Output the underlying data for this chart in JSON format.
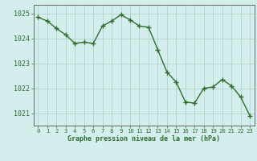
{
  "x": [
    0,
    1,
    2,
    3,
    4,
    5,
    6,
    7,
    8,
    9,
    10,
    11,
    12,
    13,
    14,
    15,
    16,
    17,
    18,
    19,
    20,
    21,
    22,
    23
  ],
  "y": [
    1024.85,
    1024.7,
    1024.4,
    1024.15,
    1023.8,
    1023.85,
    1023.8,
    1024.5,
    1024.7,
    1024.95,
    1024.75,
    1024.5,
    1024.45,
    1023.55,
    1022.65,
    1022.25,
    1021.45,
    1021.4,
    1022.0,
    1022.05,
    1022.35,
    1022.1,
    1021.65,
    1020.9
  ],
  "line_color": "#2d6e2d",
  "marker_color": "#2d6e2d",
  "bg_color": "#d4eeed",
  "grid_color": "#b0d4cc",
  "text_color": "#2d6e2d",
  "xlabel": "Graphe pression niveau de la mer (hPa)",
  "ylim_min": 1020.5,
  "ylim_max": 1025.35,
  "yticks": [
    1021,
    1022,
    1023,
    1024,
    1025
  ],
  "xticks": [
    0,
    1,
    2,
    3,
    4,
    5,
    6,
    7,
    8,
    9,
    10,
    11,
    12,
    13,
    14,
    15,
    16,
    17,
    18,
    19,
    20,
    21,
    22,
    23
  ],
  "xlabel_fontsize": 6.0,
  "ytick_fontsize": 6.0,
  "xtick_fontsize": 5.2
}
